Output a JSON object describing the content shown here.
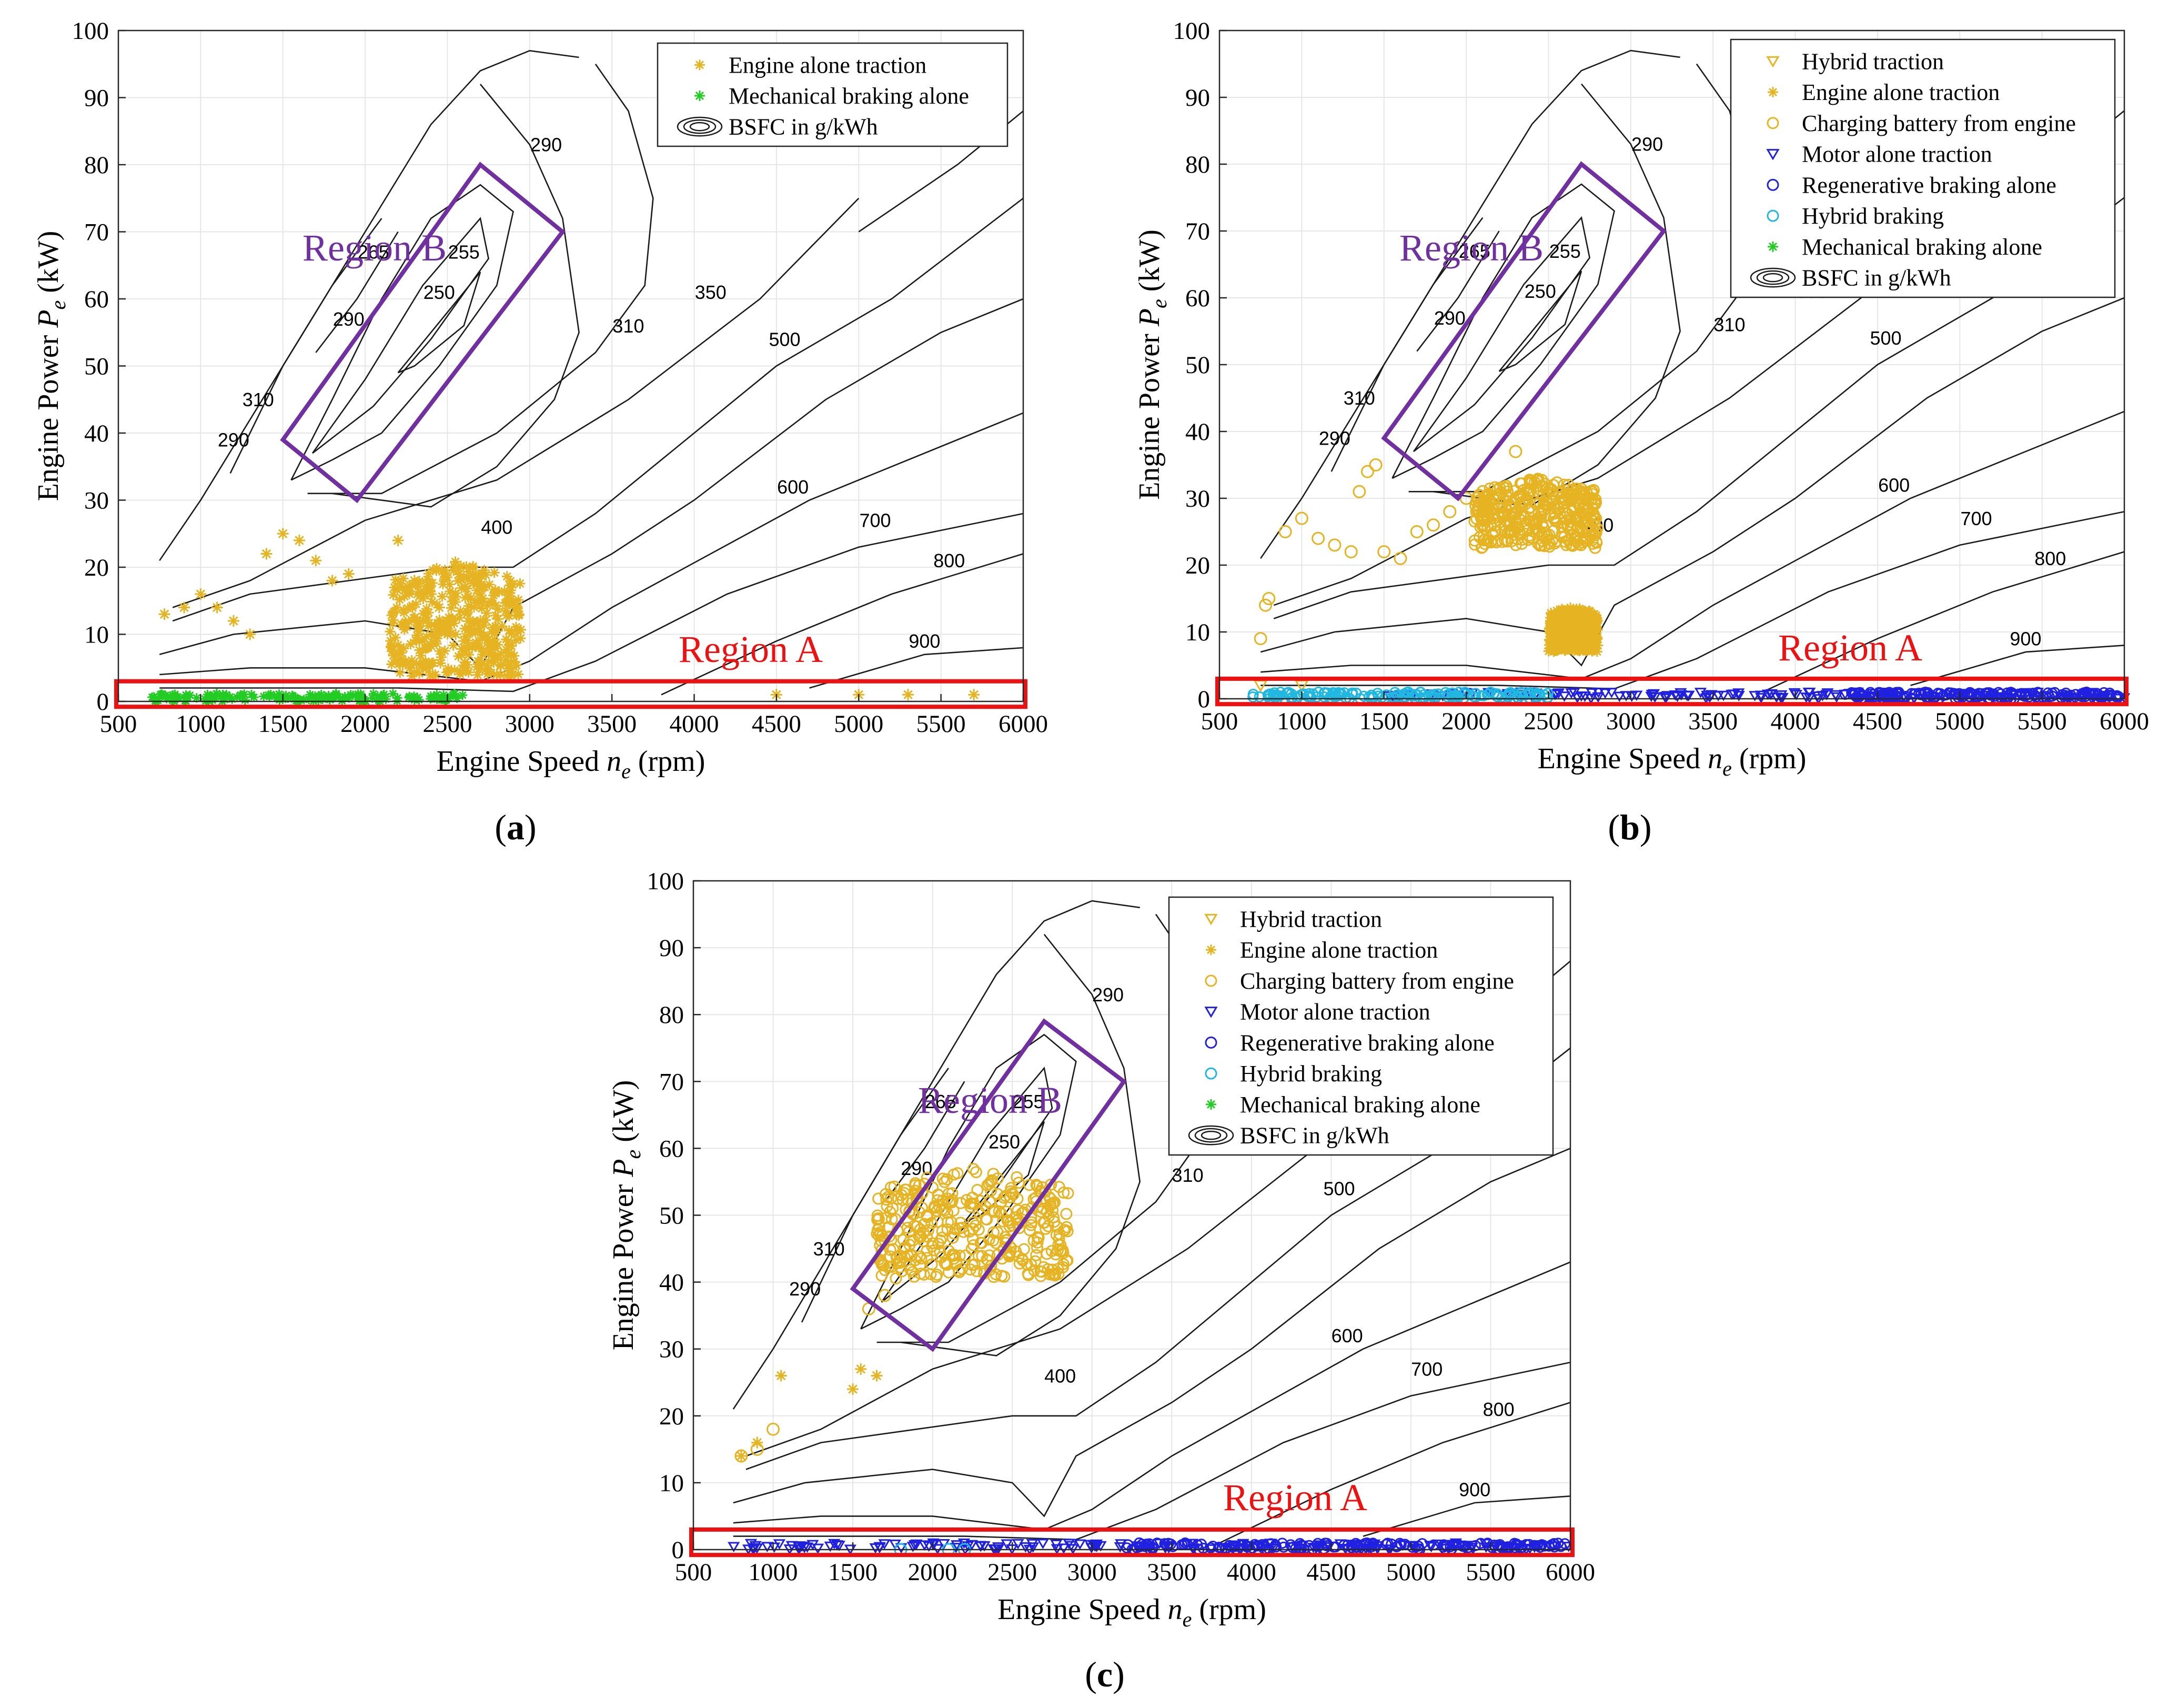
{
  "figure": {
    "panel_labels": [
      "(a)",
      "(b)",
      "(c)"
    ]
  },
  "colors": {
    "hybrid_traction": "#E6B422",
    "engine_alone": "#E6B422",
    "charging": "#E6B422",
    "motor_alone": "#2020E0",
    "regen": "#2020E0",
    "hybrid_braking": "#20B8E0",
    "mech_braking": "#22CC22",
    "region_a": "#EE1111",
    "region_b": "#7030A0",
    "contour": "#1a1a1a",
    "grid": "#e6e6e6"
  },
  "chart_data": [
    {
      "type": "scatter",
      "panel": "(a)",
      "xlabel": "Engine Speed n_e (rpm)",
      "xlabel_main": "Engine Speed ",
      "xlabel_var": "n",
      "xlabel_sub": "e",
      "xlabel_unit": " (rpm)",
      "ylabel_main": "Engine Power ",
      "ylabel_var": "P",
      "ylabel_sub": "e",
      "ylabel_unit": " (kW)",
      "xlim": [
        500,
        6000
      ],
      "ylim": [
        0,
        100
      ],
      "xticks": [
        500,
        1000,
        1500,
        2000,
        2500,
        3000,
        3500,
        4000,
        4500,
        5000,
        5500,
        6000
      ],
      "yticks": [
        0,
        10,
        20,
        30,
        40,
        50,
        60,
        70,
        80,
        90,
        100
      ],
      "grid": true,
      "legend_position": "top-right",
      "legend": [
        "Engine alone traction",
        "Mechanical braking alone",
        "BSFC in g/kWh"
      ],
      "annotations": [
        "Region A",
        "Region B"
      ],
      "contour_levels": [
        250,
        255,
        265,
        290,
        310,
        350,
        400,
        500,
        600,
        700,
        800,
        900
      ],
      "series": [
        {
          "name": "Engine alone traction",
          "marker": "asterisk",
          "color_key": "engine_alone",
          "points": [
            [
              780,
              13
            ],
            [
              900,
              14
            ],
            [
              1000,
              16
            ],
            [
              1100,
              14
            ],
            [
              1200,
              12
            ],
            [
              1300,
              10
            ],
            [
              1400,
              22
            ],
            [
              1500,
              25
            ],
            [
              1600,
              24
            ],
            [
              1700,
              21
            ],
            [
              1800,
              18
            ],
            [
              1900,
              19
            ],
            [
              2200,
              24
            ],
            [
              2300,
              18
            ],
            [
              2400,
              16
            ],
            [
              2450,
              14
            ],
            [
              2500,
              12
            ],
            [
              2550,
              10
            ],
            [
              2600,
              9
            ],
            [
              2650,
              8
            ],
            [
              2700,
              12
            ],
            [
              2750,
              6
            ],
            [
              2800,
              4
            ],
            [
              4500,
              1
            ],
            [
              5000,
              1
            ],
            [
              5300,
              1
            ],
            [
              5700,
              1
            ]
          ],
          "cluster": {
            "x": [
              2150,
              2950
            ],
            "y": [
              1,
              21
            ]
          }
        },
        {
          "name": "Mechanical braking alone",
          "marker": "asterisk",
          "color_key": "mech_braking",
          "band": {
            "x": [
              700,
              2600
            ],
            "y": [
              0,
              1.2
            ]
          }
        }
      ],
      "region_a": {
        "x": [
          500,
          6000
        ],
        "y": [
          -0.8,
          3
        ]
      },
      "region_b": [
        [
          1500,
          39
        ],
        [
          2700,
          80
        ],
        [
          3200,
          70
        ],
        [
          1950,
          30
        ]
      ]
    },
    {
      "type": "scatter",
      "panel": "(b)",
      "xlabel_main": "Engine Speed ",
      "xlabel_var": "n",
      "xlabel_sub": "e",
      "xlabel_unit": " (rpm)",
      "ylabel_main": "Engine Power ",
      "ylabel_var": "P",
      "ylabel_sub": "e",
      "ylabel_unit": " (kW)",
      "xlim": [
        500,
        6000
      ],
      "ylim": [
        0,
        100
      ],
      "xticks": [
        500,
        1000,
        1500,
        2000,
        2500,
        3000,
        3500,
        4000,
        4500,
        5000,
        5500,
        6000
      ],
      "yticks": [
        0,
        10,
        20,
        30,
        40,
        50,
        60,
        70,
        80,
        90,
        100
      ],
      "grid": true,
      "legend_position": "top-right",
      "legend": [
        "Hybrid traction",
        "Engine alone traction",
        "Charging battery from engine",
        "Motor alone traction",
        "Regenerative braking alone",
        "Hybrid braking",
        "Mechanical braking alone",
        "BSFC in g/kWh"
      ],
      "annotations": [
        "Region A",
        "Region B"
      ],
      "series": [
        {
          "name": "Hybrid traction",
          "marker": "triangle-down",
          "color_key": "hybrid_traction",
          "points": [
            [
              750,
              2
            ],
            [
              1000,
              2
            ]
          ]
        },
        {
          "name": "Engine alone traction",
          "marker": "asterisk",
          "color_key": "engine_alone",
          "cluster": {
            "x": [
              2500,
              2800
            ],
            "y": [
              6,
              14
            ]
          }
        },
        {
          "name": "Charging battery from engine",
          "marker": "circle",
          "color_key": "charging",
          "points": [
            [
              750,
              9
            ],
            [
              780,
              14
            ],
            [
              800,
              15
            ],
            [
              900,
              25
            ],
            [
              1000,
              27
            ],
            [
              1100,
              24
            ],
            [
              1200,
              23
            ],
            [
              1300,
              22
            ],
            [
              1350,
              31
            ],
            [
              1400,
              34
            ],
            [
              1450,
              35
            ],
            [
              1500,
              22
            ],
            [
              1600,
              21
            ],
            [
              1700,
              25
            ],
            [
              1800,
              26
            ],
            [
              1900,
              28
            ],
            [
              2000,
              30
            ],
            [
              2100,
              28
            ],
            [
              2200,
              30
            ],
            [
              2300,
              37
            ]
          ],
          "cluster": {
            "x": [
              2050,
              2800
            ],
            "y": [
              21,
              33
            ]
          }
        },
        {
          "name": "Motor alone traction",
          "marker": "triangle-down",
          "color_key": "motor_alone",
          "band": {
            "x": [
              1500,
              6000
            ],
            "y": [
              0,
              1
            ]
          }
        },
        {
          "name": "Regenerative braking alone",
          "marker": "circle",
          "color_key": "regen",
          "band": {
            "x": [
              4300,
              6000
            ],
            "y": [
              0,
              1
            ]
          }
        },
        {
          "name": "Hybrid braking",
          "marker": "circle",
          "color_key": "hybrid_braking",
          "band": {
            "x": [
              700,
              2500
            ],
            "y": [
              0,
              1
            ]
          }
        }
      ],
      "region_a": {
        "x": [
          500,
          6000
        ],
        "y": [
          -0.8,
          3
        ]
      },
      "region_b": [
        [
          1500,
          39
        ],
        [
          2700,
          80
        ],
        [
          3200,
          70
        ],
        [
          1950,
          30
        ]
      ]
    },
    {
      "type": "scatter",
      "panel": "(c)",
      "xlabel_main": "Engine Speed ",
      "xlabel_var": "n",
      "xlabel_sub": "e",
      "xlabel_unit": " (rpm)",
      "ylabel_main": "Engine Power ",
      "ylabel_var": "P",
      "ylabel_sub": "e",
      "ylabel_unit": " (kW)",
      "xlim": [
        500,
        6000
      ],
      "ylim": [
        0,
        100
      ],
      "xticks": [
        500,
        1000,
        1500,
        2000,
        2500,
        3000,
        3500,
        4000,
        4500,
        5000,
        5500,
        6000
      ],
      "yticks": [
        0,
        10,
        20,
        30,
        40,
        50,
        60,
        70,
        80,
        90,
        100
      ],
      "grid": true,
      "legend_position": "top-center",
      "legend": [
        "Hybrid traction",
        "Engine alone traction",
        "Charging battery from engine",
        "Motor alone traction",
        "Regenerative braking alone",
        "Hybrid braking",
        "Mechanical braking alone",
        "BSFC in g/kWh"
      ],
      "annotations": [
        "Region A",
        "Region B"
      ],
      "series": [
        {
          "name": "Engine alone traction",
          "marker": "asterisk",
          "color_key": "engine_alone",
          "points": [
            [
              800,
              14
            ],
            [
              900,
              16
            ],
            [
              1500,
              24
            ],
            [
              1550,
              27
            ],
            [
              1650,
              26
            ],
            [
              1050,
              26
            ]
          ]
        },
        {
          "name": "Charging battery from engine",
          "marker": "circle",
          "color_key": "charging",
          "points": [
            [
              800,
              14
            ],
            [
              900,
              15
            ],
            [
              1000,
              18
            ],
            [
              1600,
              36
            ],
            [
              1700,
              38
            ]
          ],
          "cluster": {
            "x": [
              1650,
              2850
            ],
            "y": [
              38,
              57
            ]
          }
        },
        {
          "name": "Motor alone traction",
          "marker": "triangle-down",
          "color_key": "motor_alone",
          "band": {
            "x": [
              700,
              6000
            ],
            "y": [
              0,
              1
            ]
          }
        },
        {
          "name": "Regenerative braking alone",
          "marker": "circle",
          "color_key": "regen",
          "band": {
            "x": [
              3200,
              6000
            ],
            "y": [
              0,
              1
            ]
          }
        },
        {
          "name": "Hybrid braking",
          "marker": "circle",
          "color_key": "hybrid_braking",
          "points": [
            [
              1800,
              0
            ],
            [
              2100,
              0
            ],
            [
              2200,
              0
            ]
          ]
        }
      ],
      "region_a": {
        "x": [
          500,
          6000
        ],
        "y": [
          -0.8,
          3
        ]
      },
      "region_b": [
        [
          1500,
          39
        ],
        [
          2700,
          79
        ],
        [
          3200,
          70
        ],
        [
          2000,
          30
        ]
      ]
    }
  ]
}
